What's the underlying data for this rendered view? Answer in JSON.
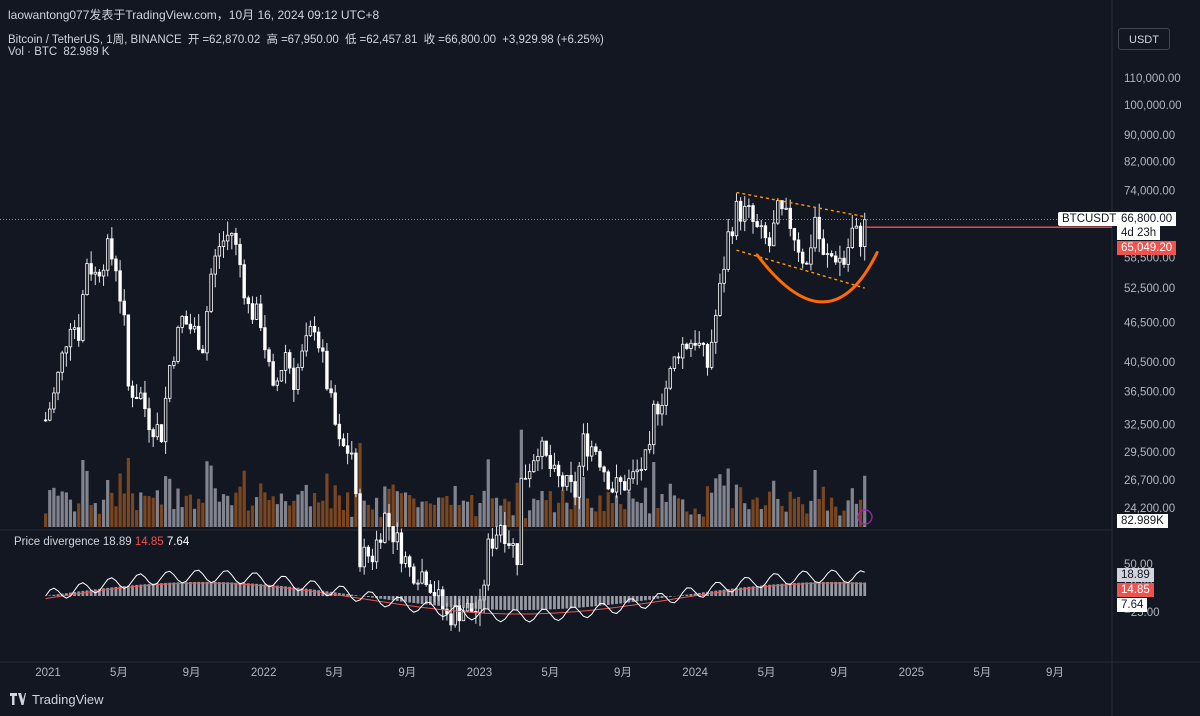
{
  "header": {
    "publisher": "laowantong077发表于TradingView.com，10月 16, 2024 09:12 UTC+8",
    "symbol": "Bitcoin / TetherUS, 1周, BINANCE",
    "open_label": "开",
    "open": "=62,870.02",
    "high_label": "高",
    "high": "=67,950.00",
    "low_label": "低",
    "low": "=62,457.81",
    "close_label": "收",
    "close": "=66,800.00",
    "change": "+3,929.98 (+6.25%)",
    "volume_label": "Vol · BTC",
    "volume": "82.989 K"
  },
  "currency": "USDT",
  "price_tags": {
    "symbol": "BTCUSDT",
    "last": "66,800.00",
    "timer": "4d 23h",
    "ma": "65,049.20",
    "volume": "82.989K"
  },
  "indicator": {
    "name": "Price divergence",
    "a": "18.89",
    "b": "14.85",
    "c": "7.64",
    "tags": [
      "18.89",
      "14.85",
      "7.64"
    ]
  },
  "logo": "TradingView",
  "colors": {
    "bg": "#131722",
    "up": "#ffffff",
    "down": "#ffffff",
    "vol_up": "#9598a1",
    "vol_down": "#8d4f1f",
    "ma": "#ef5350",
    "pattern": "#ff6b00",
    "channel": "#ff9800",
    "grid": "#1f2433"
  },
  "chart_data": {
    "type": "candlestick",
    "timeframe": "weekly",
    "price_scale": "log",
    "y_ticks": [
      24200,
      26700,
      29500,
      32500,
      36500,
      40500,
      46500,
      52500,
      58500,
      74000,
      82000,
      90000,
      100000,
      110000
    ],
    "y_tick_labels": [
      "24,200.00",
      "26,700.00",
      "29,500.00",
      "32,500.00",
      "36,500.00",
      "40,500.00",
      "46,500.00",
      "52,500.00",
      "58,500.00",
      "74,000.00",
      "82,000.00",
      "90,000.00",
      "100,000.00",
      "110,000.00"
    ],
    "x_ticks": [
      "2021-01-01",
      "2021-05-01",
      "2021-09-01",
      "2022-01-01",
      "2022-05-01",
      "2022-09-01",
      "2023-01-01",
      "2023-05-01",
      "2023-09-01",
      "2024-01-01",
      "2024-05-01",
      "2024-09-01",
      "2025-01-01",
      "2025-05-01",
      "2025-09-01"
    ],
    "x_tick_labels": [
      "2021",
      "5月",
      "9月",
      "2022",
      "5月",
      "9月",
      "2023",
      "5月",
      "9月",
      "2024",
      "5月",
      "9月",
      "2025",
      "5月",
      "9月"
    ],
    "close_path": [
      [
        "2020-12-28",
        33000
      ],
      [
        "2021-01-11",
        36000
      ],
      [
        "2021-02-08",
        47000
      ],
      [
        "2021-02-22",
        45000
      ],
      [
        "2021-03-08",
        58000
      ],
      [
        "2021-03-22",
        55000
      ],
      [
        "2021-04-12",
        60000
      ],
      [
        "2021-04-26",
        57000
      ],
      [
        "2021-05-10",
        46000
      ],
      [
        "2021-05-17",
        37000
      ],
      [
        "2021-06-07",
        36000
      ],
      [
        "2021-06-21",
        33000
      ],
      [
        "2021-07-12",
        31500
      ],
      [
        "2021-07-26",
        40000
      ],
      [
        "2021-08-16",
        47000
      ],
      [
        "2021-09-06",
        45000
      ],
      [
        "2021-09-20",
        43000
      ],
      [
        "2021-10-04",
        55000
      ],
      [
        "2021-10-18",
        61000
      ],
      [
        "2021-11-08",
        64000
      ],
      [
        "2021-11-22",
        57000
      ],
      [
        "2021-12-06",
        49000
      ],
      [
        "2021-12-27",
        47000
      ],
      [
        "2022-01-17",
        36000
      ],
      [
        "2022-02-07",
        42000
      ],
      [
        "2022-02-21",
        38000
      ],
      [
        "2022-03-28",
        46500
      ],
      [
        "2022-04-11",
        40500
      ],
      [
        "2022-05-09",
        30000
      ],
      [
        "2022-05-30",
        29500
      ],
      [
        "2022-06-13",
        20500
      ],
      [
        "2022-07-04",
        20500
      ],
      [
        "2022-07-25",
        23500
      ],
      [
        "2022-08-15",
        21500
      ],
      [
        "2022-09-05",
        19500
      ],
      [
        "2022-10-03",
        19200
      ],
      [
        "2022-11-07",
        16500
      ],
      [
        "2022-12-05",
        17000
      ],
      [
        "2023-01-02",
        16800
      ],
      [
        "2023-01-16",
        21000
      ],
      [
        "2023-02-06",
        23000
      ],
      [
        "2023-03-06",
        20500
      ],
      [
        "2023-03-13",
        26500
      ],
      [
        "2023-03-27",
        28200
      ],
      [
        "2023-04-10",
        30300
      ],
      [
        "2023-05-08",
        27000
      ],
      [
        "2023-06-12",
        25500
      ],
      [
        "2023-06-26",
        30500
      ],
      [
        "2023-07-17",
        29900
      ],
      [
        "2023-08-14",
        26000
      ],
      [
        "2023-09-11",
        26500
      ],
      [
        "2023-10-16",
        29000
      ],
      [
        "2023-10-23",
        34000
      ],
      [
        "2023-11-13",
        37000
      ],
      [
        "2023-12-04",
        42500
      ],
      [
        "2024-01-01",
        44000
      ],
      [
        "2024-01-22",
        40000
      ],
      [
        "2024-02-12",
        52000
      ],
      [
        "2024-02-26",
        63000
      ],
      [
        "2024-03-11",
        69000
      ],
      [
        "2024-04-01",
        68000
      ],
      [
        "2024-04-15",
        64000
      ],
      [
        "2024-05-06",
        61000
      ],
      [
        "2024-05-20",
        68500
      ],
      [
        "2024-06-10",
        66000
      ],
      [
        "2024-06-24",
        61000
      ],
      [
        "2024-07-08",
        56500
      ],
      [
        "2024-07-22",
        67500
      ],
      [
        "2024-08-05",
        58000
      ],
      [
        "2024-08-26",
        59000
      ],
      [
        "2024-09-09",
        57500
      ],
      [
        "2024-09-23",
        64000
      ],
      [
        "2024-10-07",
        62800
      ],
      [
        "2024-10-14",
        66800
      ]
    ],
    "ma_value": 65049.2,
    "last": 66800,
    "annotations": {
      "descending_channel": {
        "upper": [
          [
            "2024-03-11",
            73500
          ],
          [
            "2024-10-14",
            67500
          ]
        ],
        "lower": [
          [
            "2024-03-11",
            60000
          ],
          [
            "2024-10-14",
            52500
          ]
        ]
      },
      "cup_arc": [
        [
          "2024-04-15",
          59000
        ],
        [
          "2024-08-05",
          50000
        ],
        [
          "2024-11-04",
          59500
        ]
      ]
    },
    "indicator": {
      "name": "Price divergence",
      "y_ticks": [
        50,
        25,
        -25
      ],
      "y_tick_labels": [
        "50.00",
        "25.00",
        "−25.00"
      ],
      "values": [
        18.89,
        14.85,
        7.64
      ]
    }
  }
}
